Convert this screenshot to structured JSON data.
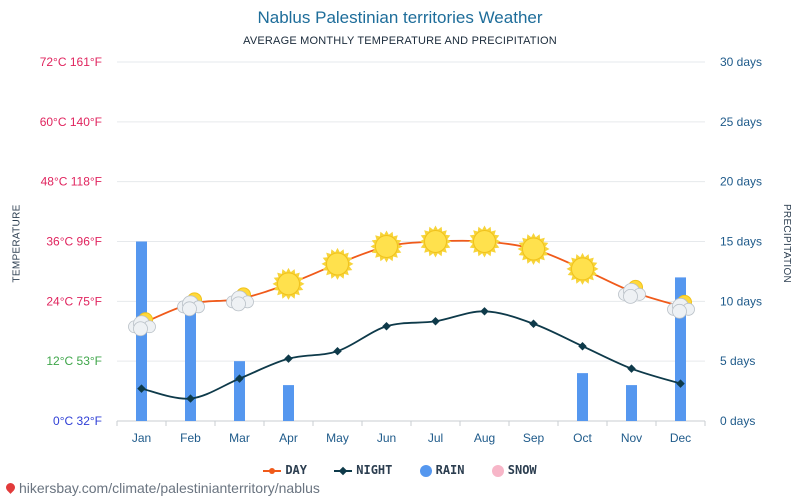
{
  "title": "Nablus Palestinian territories Weather",
  "subtitle": "AVERAGE MONTHLY TEMPERATURE AND PRECIPITATION",
  "footer": "hikersbay.com/climate/palestinianterritory/nablus",
  "chart_data": {
    "type": "line",
    "categories": [
      "Jan",
      "Feb",
      "Mar",
      "Apr",
      "May",
      "Jun",
      "Jul",
      "Aug",
      "Sep",
      "Oct",
      "Nov",
      "Dec"
    ],
    "left_axis": {
      "title": "TEMPERATURE",
      "range_c": [
        0,
        72
      ],
      "ticks": [
        {
          "value": 0,
          "label": "0°C 32°F",
          "color": "#2f3fd6"
        },
        {
          "value": 12,
          "label": "12°C 53°F",
          "color": "#3fa64a"
        },
        {
          "value": 24,
          "label": "24°C 75°F",
          "color": "#e0245e"
        },
        {
          "value": 36,
          "label": "36°C 96°F",
          "color": "#e0245e"
        },
        {
          "value": 48,
          "label": "48°C 118°F",
          "color": "#e0245e"
        },
        {
          "value": 60,
          "label": "60°C 140°F",
          "color": "#e0245e"
        },
        {
          "value": 72,
          "label": "72°C 161°F",
          "color": "#e0245e"
        }
      ]
    },
    "right_axis": {
      "title": "PRECIPITATION",
      "range_days": [
        0,
        30
      ],
      "ticks": [
        {
          "value": 0,
          "label": "0 days"
        },
        {
          "value": 5,
          "label": "5 days"
        },
        {
          "value": 10,
          "label": "10 days"
        },
        {
          "value": 15,
          "label": "15 days"
        },
        {
          "value": 20,
          "label": "20 days"
        },
        {
          "value": 25,
          "label": "25 days"
        },
        {
          "value": 30,
          "label": "30 days"
        }
      ]
    },
    "grid": true,
    "series": [
      {
        "name": "DAY",
        "axis": "left",
        "color": "#f05a1a",
        "values": [
          19.5,
          23.5,
          24.5,
          27.5,
          31.5,
          35,
          36,
          36,
          34.5,
          30.5,
          26,
          23
        ]
      },
      {
        "name": "NIGHT",
        "axis": "left",
        "color": "#0e3a4a",
        "values": [
          6.5,
          4.5,
          8.5,
          12.5,
          14,
          19,
          20,
          22,
          19.5,
          15,
          10.5,
          7.5
        ]
      },
      {
        "name": "RAIN",
        "axis": "right",
        "type": "bar",
        "color": "#5597ef",
        "values": [
          15,
          10,
          5,
          3,
          0,
          0,
          0,
          0,
          0,
          4,
          3,
          12
        ]
      },
      {
        "name": "SNOW",
        "axis": "right",
        "type": "bar",
        "color": "#f7b6c8",
        "values": [
          0,
          0,
          0,
          0,
          0,
          0,
          0,
          0,
          0,
          0,
          0,
          0
        ]
      }
    ],
    "weather_icons": [
      "partly-cloudy",
      "partly-cloudy",
      "partly-cloudy",
      "sunny",
      "sunny",
      "sunny",
      "sunny",
      "sunny",
      "sunny",
      "sunny",
      "partly-cloudy",
      "partly-cloudy"
    ],
    "legend": [
      "DAY",
      "NIGHT",
      "RAIN",
      "SNOW"
    ],
    "legend_position": "bottom"
  }
}
